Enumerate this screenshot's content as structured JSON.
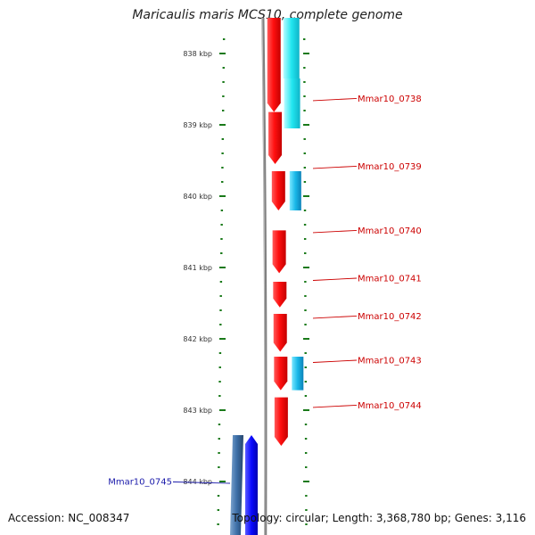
{
  "title": "Maricaulis maris MCS10, complete genome",
  "accession_text": "Accession: NC_008347",
  "summary_text": "Topology: circular; Length: 3,368,780 bp; Genes: 3,116",
  "ruler": {
    "unit": "kbp",
    "ticks": [
      {
        "kbp": 838,
        "label": "838 kbp"
      },
      {
        "kbp": 839,
        "label": "839 kbp"
      },
      {
        "kbp": 840,
        "label": "840 kbp"
      },
      {
        "kbp": 841,
        "label": "841 kbp"
      },
      {
        "kbp": 842,
        "label": "842 kbp"
      },
      {
        "kbp": 843,
        "label": "843 kbp"
      },
      {
        "kbp": 844,
        "label": "844 kbp"
      }
    ]
  },
  "colors": {
    "forward_gene": "#ff1010",
    "forward_cds": "#19b7e8",
    "forward_cds_top": "#22e6f0",
    "reverse_gene": "#0a0aff",
    "reverse_cds": "#3d6fa8",
    "label_forward": "#cc0000",
    "label_reverse": "#1a1aaa",
    "tick": "#1a7a1a",
    "backbone": "#808080"
  },
  "genes": [
    {
      "name": "",
      "strand": "+",
      "start_kbp": 837.5,
      "end_kbp": 838.82
    },
    {
      "name": "Mmar10_0738",
      "strand": "+",
      "start_kbp": 838.82,
      "end_kbp": 839.55,
      "label_kbp": 838.63
    },
    {
      "name": "Mmar10_0739",
      "strand": "+",
      "start_kbp": 839.65,
      "end_kbp": 840.2,
      "label_kbp": 839.58
    },
    {
      "name": "Mmar10_0740",
      "strand": "+",
      "start_kbp": 840.48,
      "end_kbp": 841.08,
      "label_kbp": 840.48
    },
    {
      "name": "Mmar10_0741",
      "strand": "+",
      "start_kbp": 841.2,
      "end_kbp": 841.56,
      "label_kbp": 841.15
    },
    {
      "name": "Mmar10_0742",
      "strand": "+",
      "start_kbp": 841.65,
      "end_kbp": 842.18,
      "label_kbp": 841.68
    },
    {
      "name": "Mmar10_0743",
      "strand": "+",
      "start_kbp": 842.25,
      "end_kbp": 842.72,
      "label_kbp": 842.3
    },
    {
      "name": "Mmar10_0744",
      "strand": "+",
      "start_kbp": 842.82,
      "end_kbp": 843.5,
      "label_kbp": 842.93
    },
    {
      "name": "Mmar10_0745",
      "strand": "-",
      "start_kbp": 843.35,
      "end_kbp": 844.9,
      "label_kbp": 844.0
    }
  ],
  "cds": [
    {
      "strand": "+",
      "start_kbp": 837.5,
      "end_kbp": 838.35,
      "variant": "top"
    },
    {
      "strand": "+",
      "start_kbp": 838.35,
      "end_kbp": 839.05,
      "variant": "top"
    },
    {
      "strand": "+",
      "start_kbp": 839.65,
      "end_kbp": 840.2,
      "variant": "normal"
    },
    {
      "strand": "+",
      "start_kbp": 842.25,
      "end_kbp": 842.72,
      "variant": "normal"
    },
    {
      "strand": "-",
      "start_kbp": 843.35,
      "end_kbp": 844.9,
      "variant": "normal"
    }
  ]
}
